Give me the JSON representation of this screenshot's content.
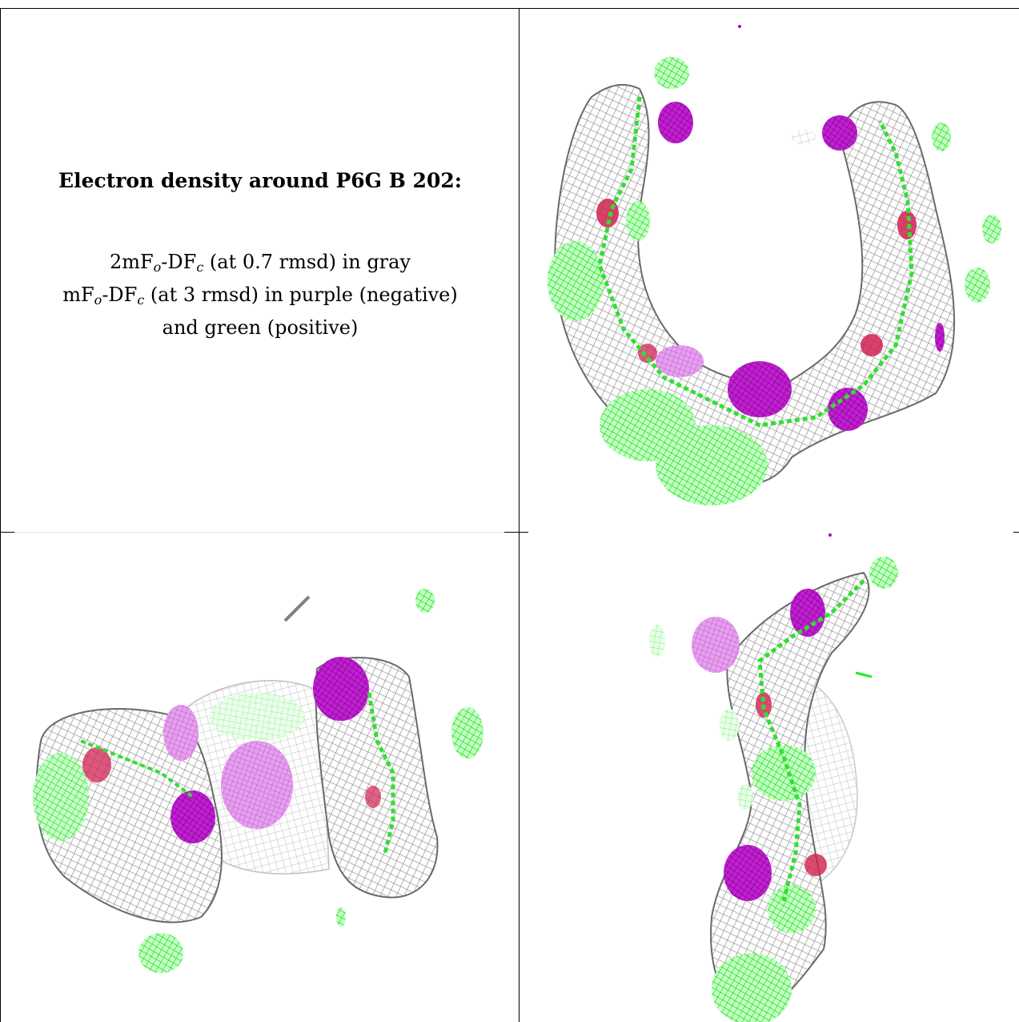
{
  "caption": {
    "title": "Electron density around P6G B 202:",
    "line1_pre": "2mF",
    "line1_sub1": "o",
    "line1_mid": "-DF",
    "line1_sub2": "c",
    "line1_post": " (at 0.7 rmsd) in gray",
    "line2_pre": "mF",
    "line2_sub1": "o",
    "line2_mid": "-DF",
    "line2_sub2": "c",
    "line2_post": " (at 3 rmsd) in purple (negative)",
    "line3": "and green (positive)"
  },
  "colors": {
    "gray_mesh": "#8a8a8a",
    "negative_purple": "#b000c0",
    "positive_green": "#22ee22",
    "oxygen_red": "#d02050",
    "grid_line": "#000000"
  },
  "panels": [
    {
      "view": "top-right",
      "description_icon": "density-mesh-ring"
    },
    {
      "view": "bottom-left",
      "description_icon": "density-mesh-side"
    },
    {
      "view": "bottom-right",
      "description_icon": "density-mesh-end"
    }
  ]
}
